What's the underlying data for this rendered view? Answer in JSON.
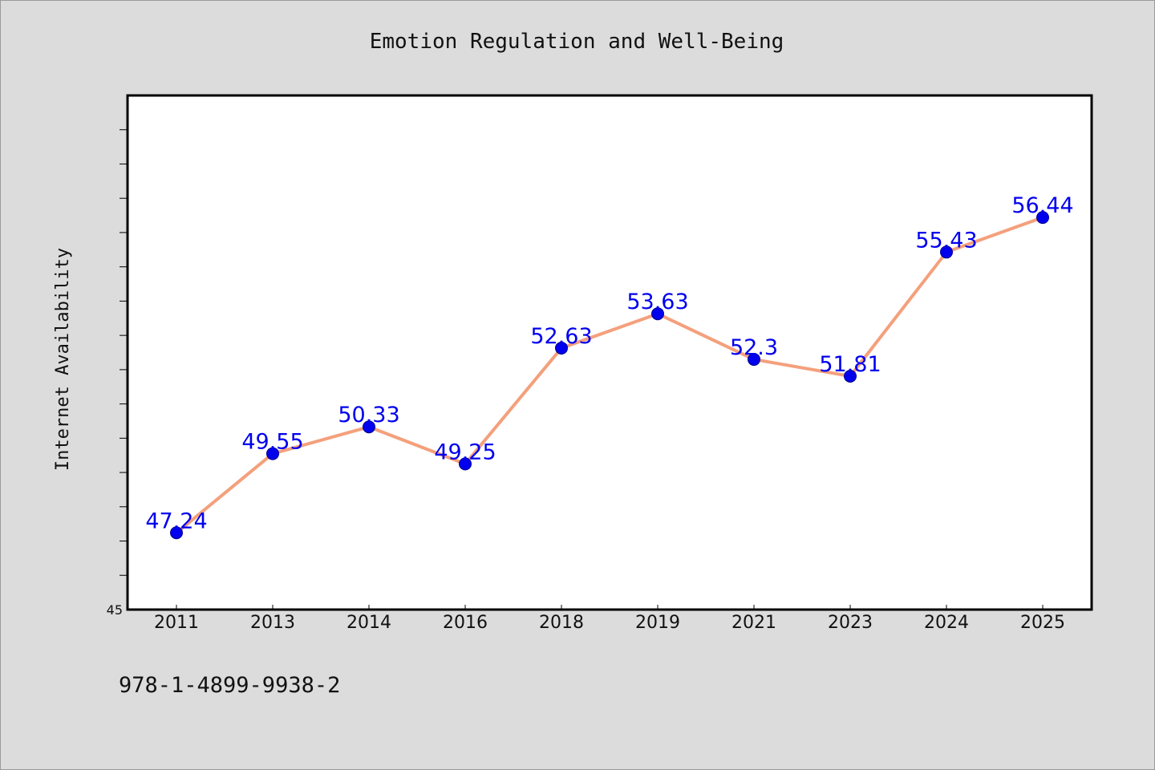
{
  "chart_data": {
    "type": "line",
    "title": "Emotion Regulation and Well-Being",
    "xlabel": "",
    "ylabel": "Internet Availability",
    "categories": [
      "2011",
      "2013",
      "2014",
      "2016",
      "2018",
      "2019",
      "2021",
      "2023",
      "2024",
      "2025"
    ],
    "series": [
      {
        "values": [
          47.24,
          49.55,
          50.33,
          49.25,
          52.63,
          53.63,
          52.3,
          51.81,
          55.43,
          56.44
        ],
        "data_labels": [
          "47.24",
          "49.55",
          "50.33",
          "49.25",
          "52.63",
          "53.63",
          "52.3",
          "51.81",
          "55.43",
          "56.44"
        ],
        "line_color": "#f4a07c",
        "marker_color": "#0000ee"
      }
    ],
    "ylim": [
      45,
      60
    ],
    "y_tick_labels": [
      "45"
    ],
    "y_minor_tick_step": 1,
    "grid": false,
    "legend": "none",
    "data_label_color": "#0000ee"
  },
  "footer": {
    "identifier": "978-1-4899-9938-2"
  }
}
